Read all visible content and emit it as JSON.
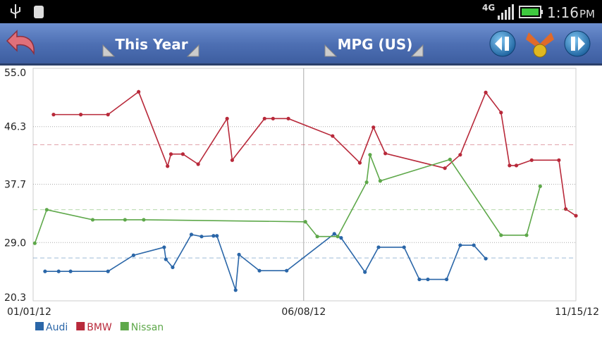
{
  "status_bar": {
    "network": "4G",
    "time": "1:16",
    "period": "PM"
  },
  "toolbar": {
    "period_selector": "This Year",
    "metric_selector": "MPG (US)"
  },
  "chart_data": {
    "type": "line",
    "xlim": [
      "01/01/12",
      "11/15/12"
    ],
    "xticks": [
      "01/01/12",
      "06/08/12",
      "11/15/12"
    ],
    "ylim": [
      20.3,
      55
    ],
    "yticks": [
      20.3,
      {
        "value": 29,
        "label": "29.0"
      },
      37.7,
      46.3,
      {
        "value": 55,
        "label": "55.0"
      }
    ],
    "grid": true,
    "legend": "bottom-left",
    "series": [
      {
        "name": "Audi",
        "color": "#2a66a8",
        "average": 26.7,
        "x": [
          "01/08/12",
          "01/16/12",
          "01/23/12",
          "02/14/12",
          "02/29/12",
          "03/18/12",
          "03/19/12",
          "03/23/12",
          "04/03/12",
          "04/09/12",
          "04/16/12",
          "04/18/12",
          "04/29/12",
          "05/01/12",
          "05/13/12",
          "05/29/12",
          "06/26/12",
          "06/30/12",
          "07/14/12",
          "07/22/12",
          "08/06/12",
          "08/15/12",
          "08/20/12",
          "08/31/12",
          "09/08/12",
          "09/16/12",
          "09/23/12"
        ],
        "values": [
          24.7,
          24.7,
          24.7,
          24.7,
          27.1,
          28.3,
          26.5,
          25.3,
          30.2,
          29.9,
          30.0,
          30.0,
          21.9,
          27.2,
          24.8,
          24.8,
          30.3,
          29.7,
          24.6,
          28.3,
          28.3,
          23.5,
          23.5,
          23.5,
          28.6,
          28.6,
          26.6
        ]
      },
      {
        "name": "BMW",
        "color": "#b8293a",
        "average": 43.6,
        "x": [
          "01/13/12",
          "01/29/12",
          "02/14/12",
          "03/03/12",
          "03/20/12",
          "03/22/12",
          "03/29/12",
          "04/07/12",
          "04/24/12",
          "04/27/12",
          "05/16/12",
          "05/21/12",
          "05/30/12",
          "06/25/12",
          "07/11/12",
          "07/19/12",
          "07/26/12",
          "08/30/12",
          "09/08/12",
          "09/23/12",
          "10/02/12",
          "10/07/12",
          "10/11/12",
          "10/20/12",
          "11/05/12",
          "11/09/12",
          "11/15/12"
        ],
        "values": [
          48.1,
          48.1,
          48.1,
          51.5,
          40.4,
          42.2,
          42.2,
          40.7,
          47.5,
          41.3,
          47.5,
          47.5,
          47.5,
          44.9,
          40.9,
          46.2,
          42.3,
          40.1,
          42.1,
          51.4,
          48.4,
          40.5,
          40.5,
          41.3,
          41.3,
          34.0,
          33.0
        ]
      },
      {
        "name": "Nissan",
        "color": "#5ea84a",
        "average": 33.9,
        "x": [
          "01/02/12",
          "01/09/12",
          "02/05/12",
          "02/24/12",
          "03/06/12",
          "06/09/12",
          "06/16/12",
          "06/28/12",
          "07/15/12",
          "07/17/12",
          "07/23/12",
          "09/02/12",
          "10/02/12",
          "10/17/12",
          "10/25/12"
        ],
        "values": [
          28.9,
          33.9,
          32.4,
          32.4,
          32.4,
          32.1,
          29.9,
          29.9,
          38.0,
          42.1,
          38.2,
          41.4,
          30.1,
          30.1,
          37.4
        ]
      }
    ]
  }
}
